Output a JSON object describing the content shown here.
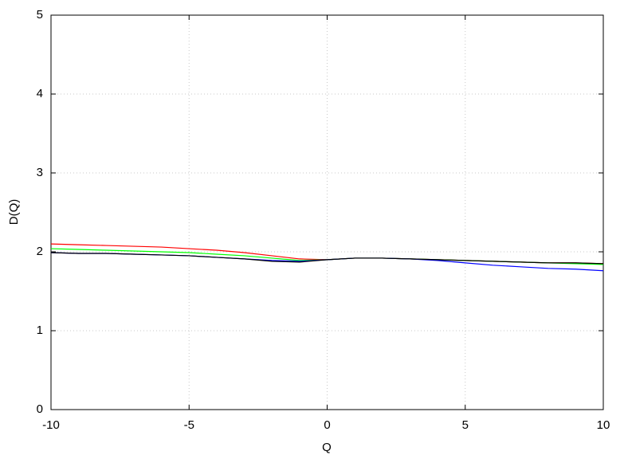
{
  "chart_data": {
    "type": "line",
    "x_label": "Q",
    "y_label": "D(Q)",
    "x": [
      -10,
      -9,
      -8,
      -7,
      -6,
      -5,
      -4,
      -3,
      -2,
      -1,
      0,
      1,
      2,
      3,
      4,
      5,
      6,
      7,
      8,
      9,
      10
    ],
    "series": [
      {
        "color": "#ff0000",
        "values": [
          2.1,
          2.09,
          2.08,
          2.07,
          2.06,
          2.04,
          2.02,
          1.99,
          1.95,
          1.91,
          1.9,
          1.92,
          1.92,
          1.91,
          1.9,
          1.89,
          1.88,
          1.87,
          1.86,
          1.86,
          1.85
        ]
      },
      {
        "color": "#00ff00",
        "values": [
          2.04,
          2.03,
          2.02,
          2.01,
          2.0,
          1.99,
          1.97,
          1.95,
          1.92,
          1.89,
          1.9,
          1.92,
          1.92,
          1.91,
          1.9,
          1.89,
          1.88,
          1.87,
          1.86,
          1.85,
          1.84
        ]
      },
      {
        "color": "#0000ff",
        "values": [
          1.99,
          1.98,
          1.98,
          1.97,
          1.96,
          1.95,
          1.93,
          1.91,
          1.89,
          1.88,
          1.9,
          1.92,
          1.92,
          1.91,
          1.89,
          1.86,
          1.83,
          1.81,
          1.79,
          1.78,
          1.76
        ]
      },
      {
        "color": "#000000",
        "values": [
          1.99,
          1.98,
          1.98,
          1.97,
          1.96,
          1.95,
          1.93,
          1.91,
          1.88,
          1.87,
          1.9,
          1.92,
          1.92,
          1.91,
          1.9,
          1.89,
          1.88,
          1.87,
          1.86,
          1.86,
          1.85
        ]
      }
    ],
    "xlim": [
      -10,
      10
    ],
    "xticks": [
      -10,
      -5,
      0,
      5,
      10
    ],
    "ylim": [
      0,
      5
    ],
    "yticks": [
      0,
      1,
      2,
      3,
      4,
      5
    ],
    "grid": true
  }
}
